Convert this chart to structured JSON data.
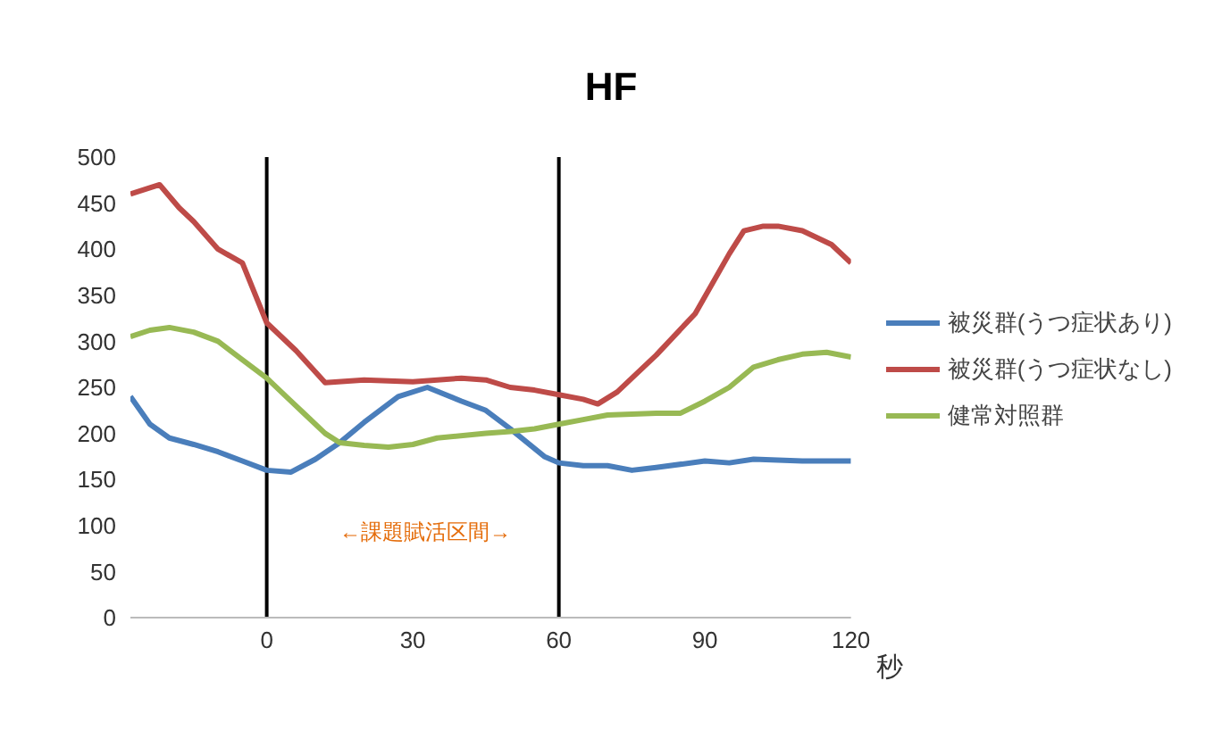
{
  "chart_data": {
    "type": "line",
    "title": "HF",
    "xlabel": "秒",
    "xlim": [
      -28,
      120
    ],
    "xticks": [
      0,
      30,
      60,
      90,
      120
    ],
    "ylim": [
      0,
      500
    ],
    "yticks": [
      0,
      50,
      100,
      150,
      200,
      250,
      300,
      350,
      400,
      450,
      500
    ],
    "grid": false,
    "legend": "right",
    "marker": "none",
    "line_style": "solid",
    "series": [
      {
        "name": "被災群(うつ症状あり)",
        "color": "#4a7ebb",
        "x": [
          -28,
          -24,
          -20,
          -15,
          -10,
          -5,
          0,
          5,
          10,
          15,
          20,
          27,
          33,
          40,
          45,
          50,
          57,
          60,
          65,
          70,
          75,
          80,
          90,
          95,
          100,
          110,
          120
        ],
        "values": [
          240,
          210,
          195,
          188,
          180,
          170,
          160,
          158,
          172,
          190,
          212,
          240,
          250,
          235,
          225,
          205,
          175,
          168,
          165,
          165,
          160,
          163,
          170,
          168,
          172,
          170,
          170
        ]
      },
      {
        "name": "被災群(うつ症状なし)",
        "color": "#be4b48",
        "x": [
          -28,
          -25,
          -22,
          -18,
          -15,
          -10,
          -5,
          0,
          6,
          12,
          20,
          30,
          40,
          45,
          50,
          55,
          60,
          65,
          68,
          72,
          75,
          80,
          88,
          95,
          98,
          102,
          105,
          110,
          116,
          120
        ],
        "values": [
          460,
          465,
          470,
          445,
          430,
          400,
          385,
          320,
          290,
          255,
          258,
          256,
          260,
          258,
          250,
          247,
          242,
          237,
          232,
          245,
          260,
          285,
          330,
          395,
          420,
          425,
          425,
          420,
          405,
          385
        ]
      },
      {
        "name": "健常対照群",
        "color": "#98b954",
        "x": [
          -28,
          -24,
          -20,
          -15,
          -10,
          -5,
          0,
          4,
          8,
          12,
          15,
          20,
          25,
          30,
          35,
          45,
          50,
          55,
          60,
          65,
          70,
          80,
          85,
          90,
          95,
          100,
          105,
          110,
          115,
          120
        ],
        "values": [
          305,
          312,
          315,
          310,
          300,
          280,
          260,
          240,
          220,
          200,
          190,
          187,
          185,
          188,
          195,
          200,
          202,
          205,
          210,
          215,
          220,
          222,
          222,
          235,
          250,
          272,
          280,
          286,
          288,
          283
        ]
      }
    ],
    "ref_lines": [
      {
        "axis": "x",
        "value": 0,
        "color": "#000000"
      },
      {
        "axis": "x",
        "value": 60,
        "color": "#000000"
      }
    ],
    "annotations": [
      "←課題賦活区間→"
    ]
  }
}
